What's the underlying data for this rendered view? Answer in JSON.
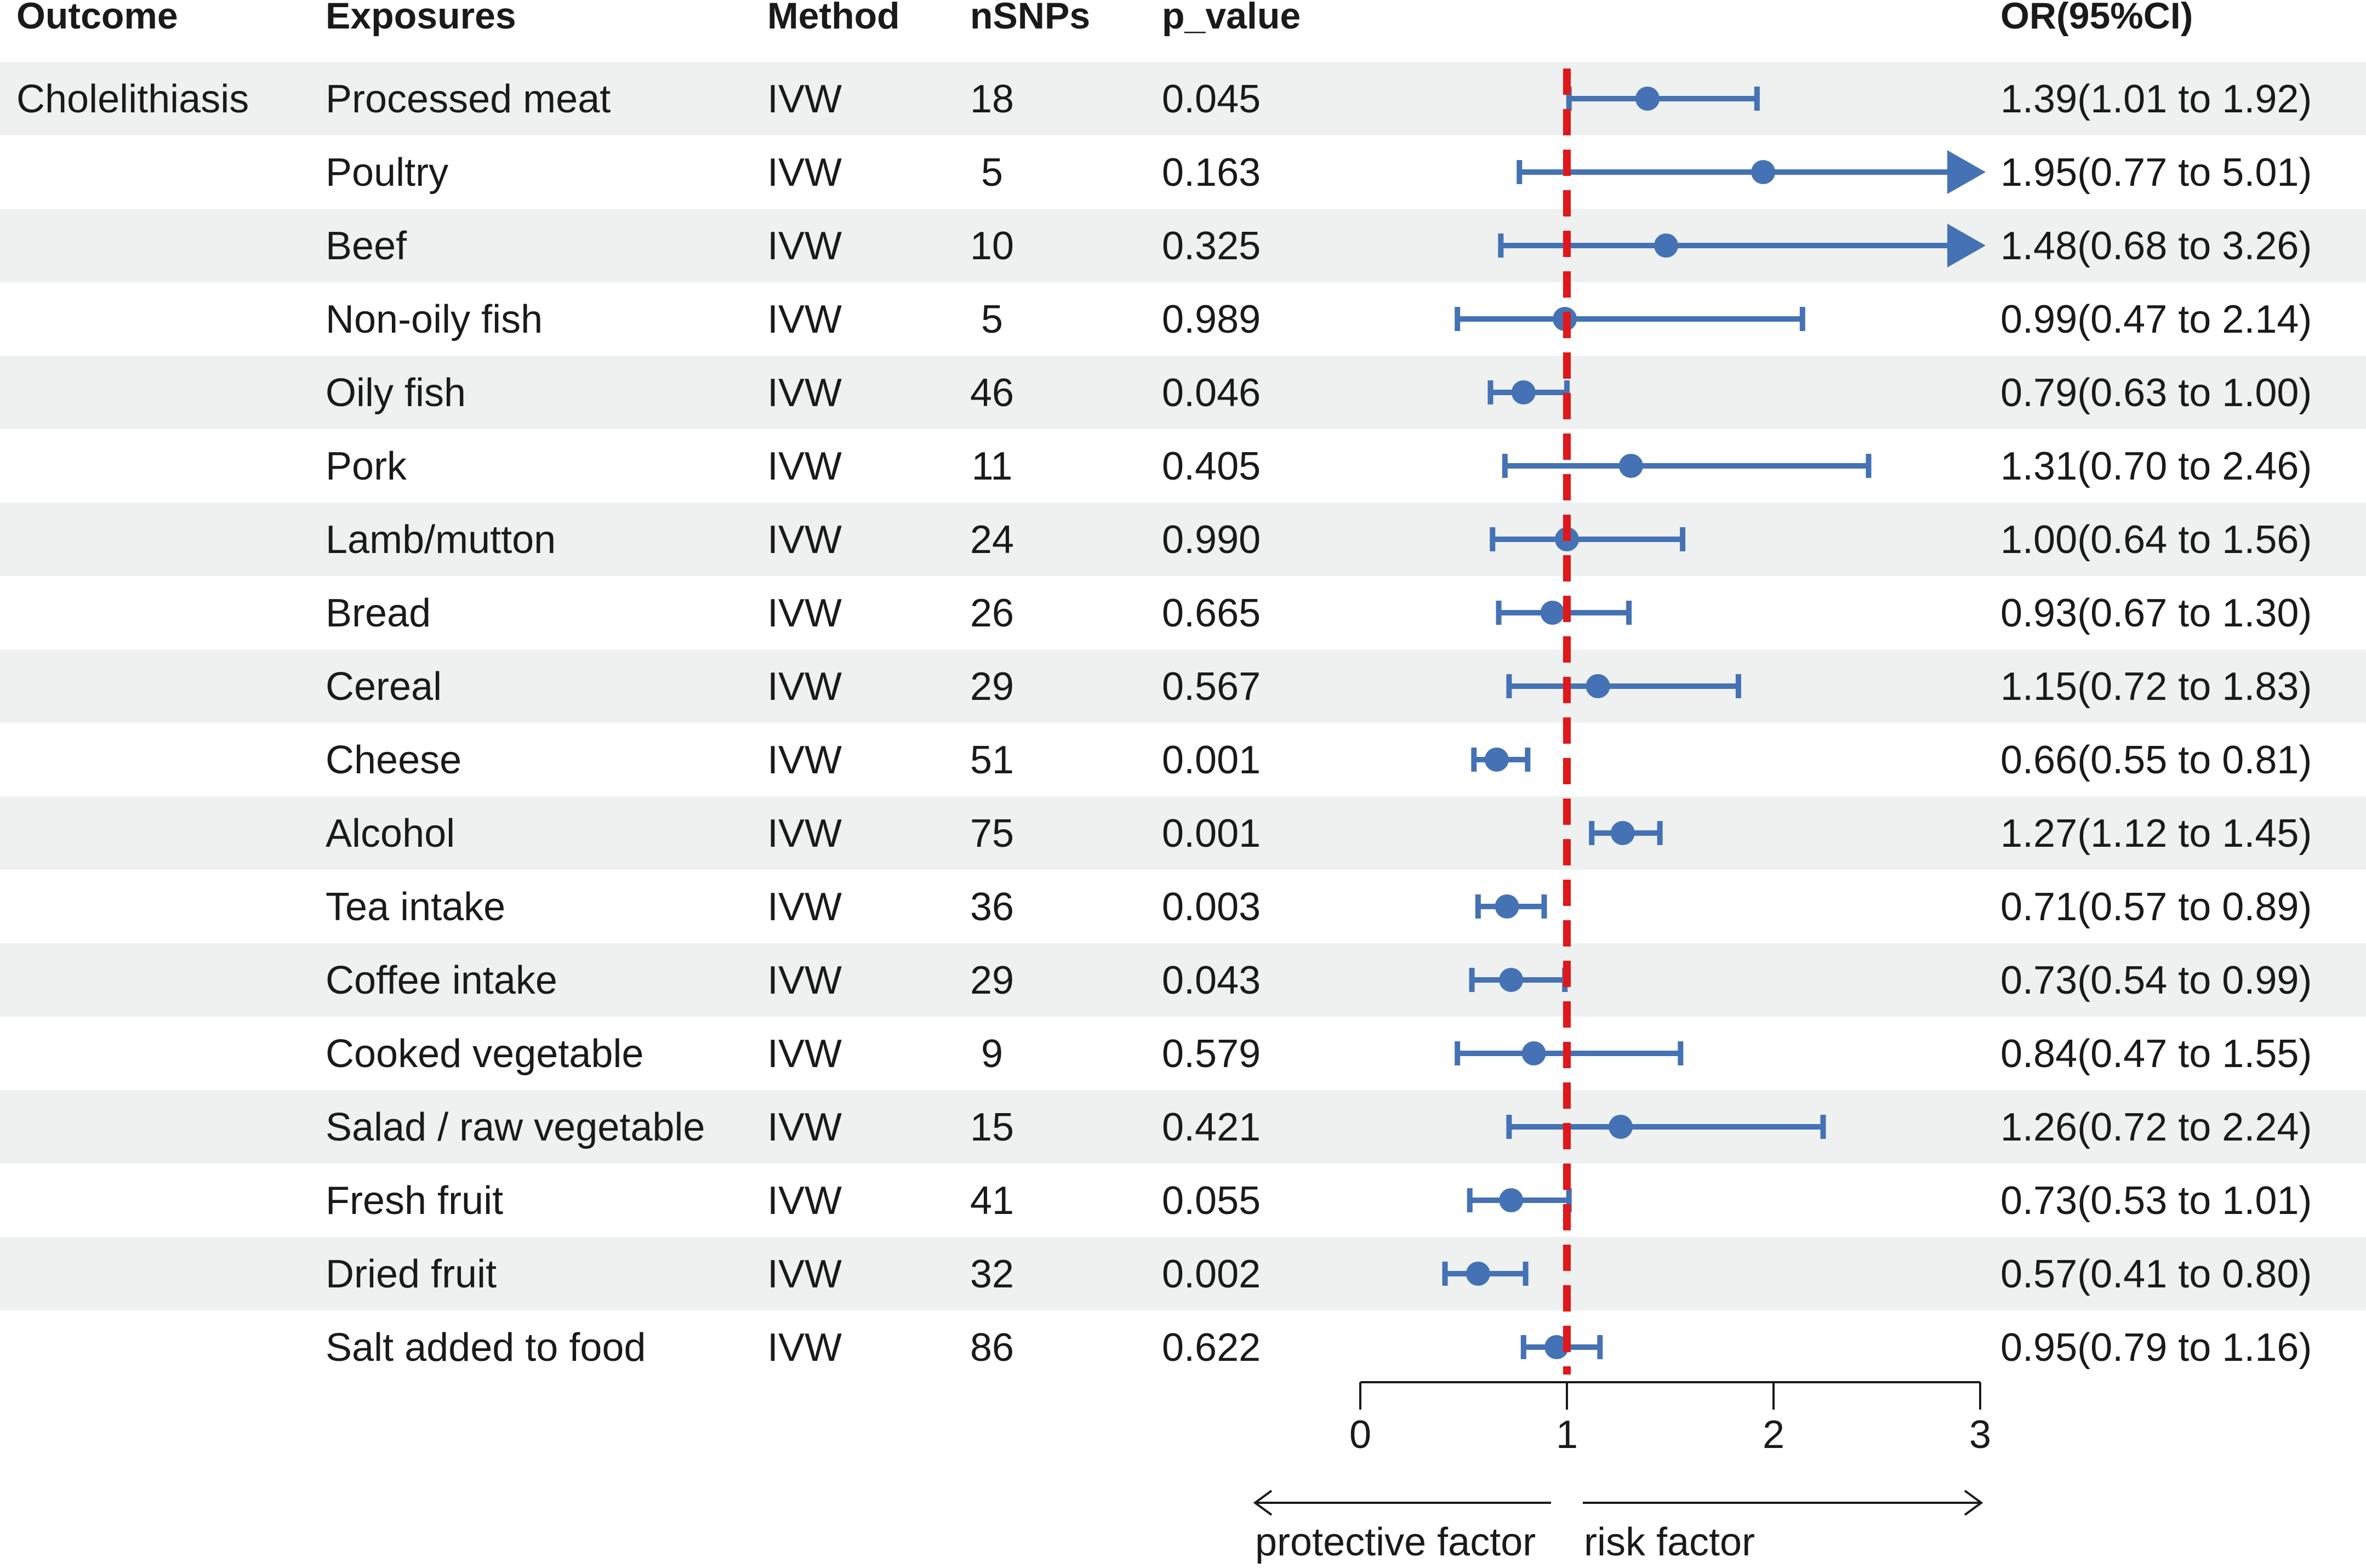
{
  "headers": {
    "outcome": "Outcome",
    "exposures": "Exposures",
    "method": "Method",
    "nsnps": "nSNPs",
    "p_value": "p_value",
    "or_ci": "OR(95%CI)"
  },
  "outcome": "Cholelithiasis",
  "rows": [
    {
      "exposure": "Processed meat",
      "method": "IVW",
      "nsnps": "18",
      "p_value": "0.045",
      "or_text": "1.39(1.01 to 1.92)",
      "or": 1.39,
      "lower": 1.01,
      "upper": 1.92
    },
    {
      "exposure": "Poultry",
      "method": "IVW",
      "nsnps": "5",
      "p_value": "0.163",
      "or_text": "1.95(0.77 to 5.01)",
      "or": 1.95,
      "lower": 0.77,
      "upper": 5.01
    },
    {
      "exposure": "Beef",
      "method": "IVW",
      "nsnps": "10",
      "p_value": "0.325",
      "or_text": "1.48(0.68 to 3.26)",
      "or": 1.48,
      "lower": 0.68,
      "upper": 3.26
    },
    {
      "exposure": "Non-oily fish",
      "method": "IVW",
      "nsnps": "5",
      "p_value": "0.989",
      "or_text": "0.99(0.47 to 2.14)",
      "or": 0.99,
      "lower": 0.47,
      "upper": 2.14
    },
    {
      "exposure": "Oily fish",
      "method": "IVW",
      "nsnps": "46",
      "p_value": "0.046",
      "or_text": "0.79(0.63 to 1.00)",
      "or": 0.79,
      "lower": 0.63,
      "upper": 1.0
    },
    {
      "exposure": "Pork",
      "method": "IVW",
      "nsnps": "11",
      "p_value": "0.405",
      "or_text": "1.31(0.70 to 2.46)",
      "or": 1.31,
      "lower": 0.7,
      "upper": 2.46
    },
    {
      "exposure": "Lamb/mutton",
      "method": "IVW",
      "nsnps": "24",
      "p_value": "0.990",
      "or_text": "1.00(0.64 to 1.56)",
      "or": 1.0,
      "lower": 0.64,
      "upper": 1.56
    },
    {
      "exposure": "Bread",
      "method": "IVW",
      "nsnps": "26",
      "p_value": "0.665",
      "or_text": "0.93(0.67 to 1.30)",
      "or": 0.93,
      "lower": 0.67,
      "upper": 1.3
    },
    {
      "exposure": "Cereal",
      "method": "IVW",
      "nsnps": "29",
      "p_value": "0.567",
      "or_text": "1.15(0.72 to 1.83)",
      "or": 1.15,
      "lower": 0.72,
      "upper": 1.83
    },
    {
      "exposure": "Cheese",
      "method": "IVW",
      "nsnps": "51",
      "p_value": "0.001",
      "or_text": "0.66(0.55 to 0.81)",
      "or": 0.66,
      "lower": 0.55,
      "upper": 0.81
    },
    {
      "exposure": "Alcohol",
      "method": "IVW",
      "nsnps": "75",
      "p_value": "0.001",
      "or_text": "1.27(1.12 to 1.45)",
      "or": 1.27,
      "lower": 1.12,
      "upper": 1.45
    },
    {
      "exposure": "Tea intake",
      "method": "IVW",
      "nsnps": "36",
      "p_value": "0.003",
      "or_text": "0.71(0.57 to 0.89)",
      "or": 0.71,
      "lower": 0.57,
      "upper": 0.89
    },
    {
      "exposure": "Coffee intake",
      "method": "IVW",
      "nsnps": "29",
      "p_value": "0.043",
      "or_text": "0.73(0.54 to 0.99)",
      "or": 0.73,
      "lower": 0.54,
      "upper": 0.99
    },
    {
      "exposure": "Cooked vegetable",
      "method": "IVW",
      "nsnps": "9",
      "p_value": "0.579",
      "or_text": "0.84(0.47 to 1.55)",
      "or": 0.84,
      "lower": 0.47,
      "upper": 1.55
    },
    {
      "exposure": "Salad / raw vegetable",
      "method": "IVW",
      "nsnps": "15",
      "p_value": "0.421",
      "or_text": "1.26(0.72 to 2.24)",
      "or": 1.26,
      "lower": 0.72,
      "upper": 2.24
    },
    {
      "exposure": "Fresh fruit",
      "method": "IVW",
      "nsnps": "41",
      "p_value": "0.055",
      "or_text": "0.73(0.53 to 1.01)",
      "or": 0.73,
      "lower": 0.53,
      "upper": 1.01
    },
    {
      "exposure": "Dried fruit",
      "method": "IVW",
      "nsnps": "32",
      "p_value": "0.002",
      "or_text": "0.57(0.41 to 0.80)",
      "or": 0.57,
      "lower": 0.41,
      "upper": 0.8
    },
    {
      "exposure": "Salt added to food",
      "method": "IVW",
      "nsnps": "86",
      "p_value": "0.622",
      "or_text": "0.95(0.79 to 1.16)",
      "or": 0.95,
      "lower": 0.79,
      "upper": 1.16
    }
  ],
  "chart_data": {
    "type": "forest",
    "x_ticks": [
      "0",
      "1",
      "2",
      "3"
    ],
    "xlim": [
      0,
      3
    ],
    "reference_line": 1,
    "left_arrow_label": "protective factor",
    "right_arrow_label": "risk factor"
  },
  "colors": {
    "point": "#4472b4",
    "reference": "#e0181b",
    "stripe": "#eef1ef",
    "axis": "#1a1a1a"
  }
}
